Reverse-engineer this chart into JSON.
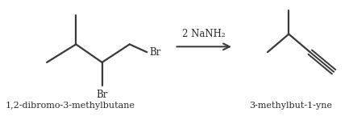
{
  "background_color": "#ffffff",
  "line_color": "#3a3a3a",
  "text_color": "#2a2a2a",
  "label1": "1,2-dibromo-3-methylbutane",
  "label2": "3-methylbut-1-yne",
  "reagent": "2 NaNH₂",
  "font_size_label": 8.0,
  "font_size_reagent": 8.5,
  "font_size_br": 8.5,
  "line_width": 1.6
}
